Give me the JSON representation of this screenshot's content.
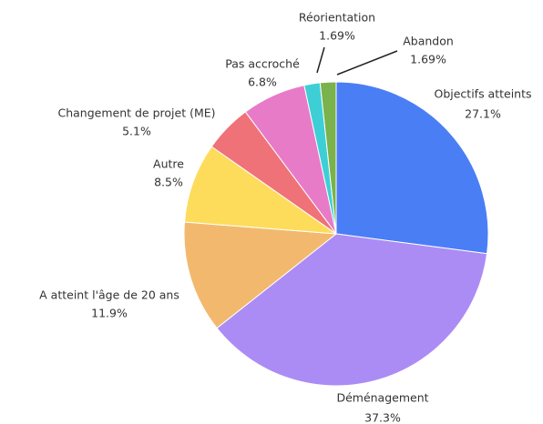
{
  "chart_data": {
    "type": "pie",
    "categories": [
      "Objectifs atteints",
      "Déménagement",
      "A atteint l'âge de 20 ans",
      "Autre",
      "Changement de projet (ME)",
      "Pas accroché",
      "Réorientation",
      "Abandon"
    ],
    "values": [
      27.1,
      37.3,
      11.9,
      8.5,
      5.1,
      6.8,
      1.69,
      1.69
    ],
    "value_labels": [
      "27.1%",
      "37.3%",
      "11.9%",
      "8.5%",
      "5.1%",
      "6.8%",
      "1.69%",
      "1.69%"
    ],
    "colors": [
      "#4a7ef5",
      "#ab8cf5",
      "#f2b96e",
      "#fddc5c",
      "#ef7278",
      "#e77bc8",
      "#3ecfd6",
      "#7ab24e"
    ]
  }
}
